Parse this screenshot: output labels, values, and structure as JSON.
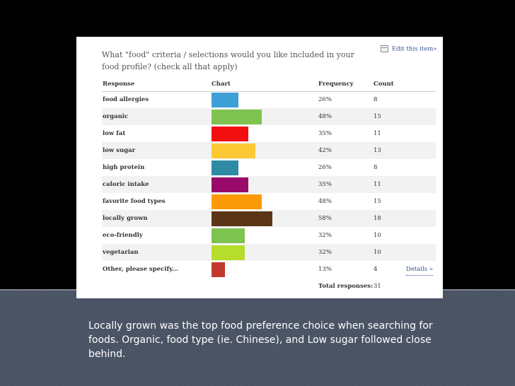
{
  "survey": {
    "question": "What \"food\" criteria / selections would you like included in your food profile? (check all that apply)",
    "edit_label": "Edit this item»",
    "edit_icon": "edit-icon",
    "headers": {
      "response": "Response",
      "chart": "Chart",
      "frequency": "Frequency",
      "count": "Count"
    },
    "details_label": "Details »",
    "total_label": "Total responses:",
    "total_value": "31"
  },
  "chart_data": {
    "type": "bar",
    "orientation": "horizontal",
    "categories": [
      "food allergies",
      "organic",
      "low fat",
      "low sugar",
      "high protein",
      "caloric intake",
      "favorite food types",
      "locally grown",
      "eco-friendly",
      "vegetarian",
      "Other, please specify..."
    ],
    "frequency_labels": [
      "26%",
      "48%",
      "35%",
      "42%",
      "26%",
      "35%",
      "48%",
      "58%",
      "32%",
      "32%",
      "13%"
    ],
    "values": [
      26,
      48,
      35,
      42,
      26,
      35,
      48,
      58,
      32,
      32,
      13
    ],
    "counts": [
      8,
      15,
      11,
      13,
      8,
      11,
      15,
      18,
      10,
      10,
      4
    ],
    "colors": [
      "#3d9fd6",
      "#7ec34f",
      "#f20f0f",
      "#fcc934",
      "#2f8aa6",
      "#9a0a6b",
      "#fb9a08",
      "#5a3616",
      "#7ec34f",
      "#b6dc2c",
      "#c0392b"
    ],
    "xlim": [
      0,
      100
    ]
  },
  "caption": "Locally grown was the top food preference choice when searching for foods.  Organic, food type (ie. Chinese), and Low sugar followed close behind."
}
